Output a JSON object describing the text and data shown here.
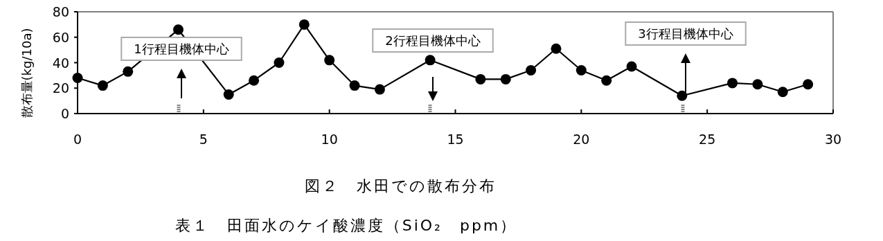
{
  "chart_data": {
    "type": "line",
    "ylabel": "散布量(kg/10a)",
    "x": [
      0,
      1,
      2,
      4,
      6,
      7,
      8,
      9,
      10,
      11,
      12,
      14,
      16,
      17,
      18,
      19,
      20,
      21,
      22,
      24,
      26,
      27,
      28,
      29
    ],
    "series": [
      {
        "color": "#000000",
        "values": [
          28,
          22,
          33,
          66,
          15,
          26,
          40,
          70,
          42,
          22,
          19,
          42,
          27,
          27,
          34,
          51,
          34,
          26,
          37,
          14,
          24,
          23,
          17,
          23
        ]
      }
    ],
    "xlim": [
      0,
      30
    ],
    "xticks": [
      0,
      5,
      10,
      15,
      20,
      25,
      30
    ],
    "ylim": [
      0,
      80
    ],
    "yticks": [
      0,
      20,
      40,
      60,
      80
    ],
    "marker": "circle",
    "grid": false,
    "annotations": [
      "1行程目機体中心",
      "2行程目機体中心",
      "3行程目機体中心",
      "図２　水田での散布分布",
      "表１　田面水のケイ酸濃度（SiO₂　ppm）"
    ]
  }
}
